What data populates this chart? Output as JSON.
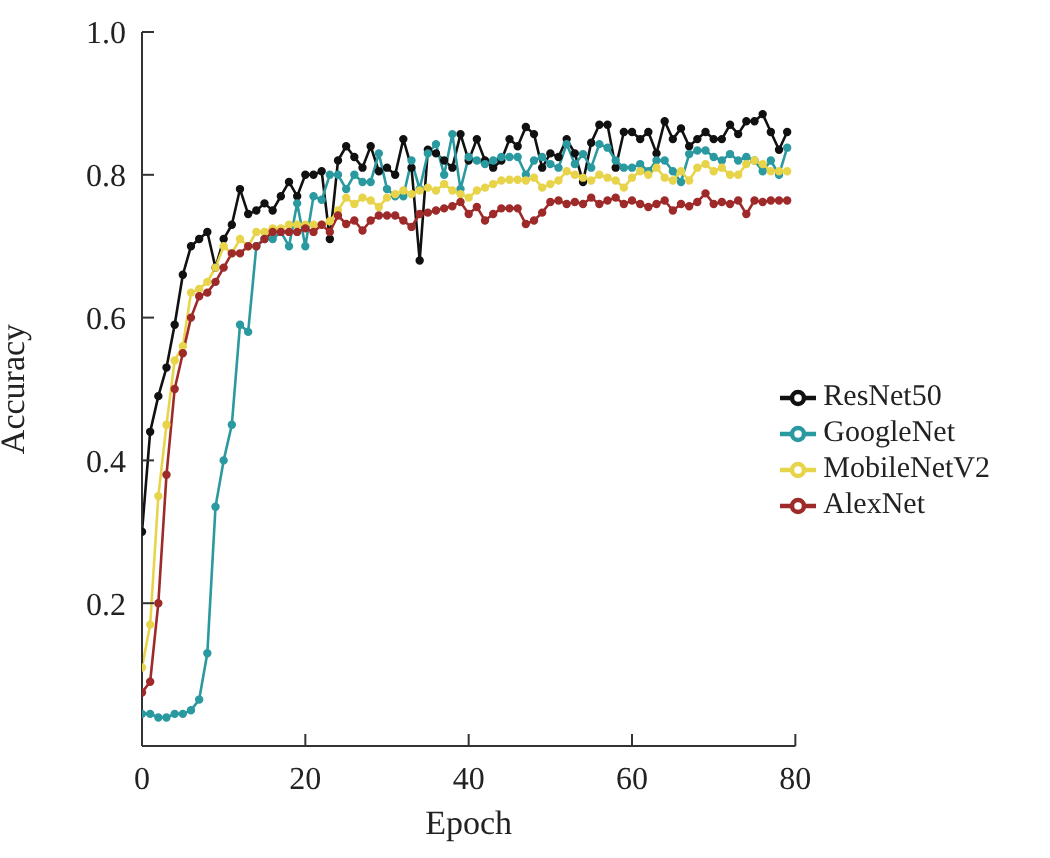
{
  "chart_data": {
    "type": "line",
    "xlabel": "Epoch",
    "ylabel": "Accuracy",
    "xlim": [
      0,
      80
    ],
    "xticks": [
      0,
      20,
      40,
      60,
      80
    ],
    "ylim": [
      0,
      1.0
    ],
    "yticks": [
      {
        "value": 0.2,
        "label": "0.2"
      },
      {
        "value": 0.4,
        "label": "0.4"
      },
      {
        "value": 0.6,
        "label": "0.6"
      },
      {
        "value": 0.8,
        "label": "0.8"
      },
      {
        "value": 1.0,
        "label": "1.0"
      }
    ],
    "legend": "right",
    "marker": "circle",
    "line_style": "solid",
    "x": [
      0,
      1,
      2,
      3,
      4,
      5,
      6,
      7,
      8,
      9,
      10,
      11,
      12,
      13,
      14,
      15,
      16,
      17,
      18,
      19,
      20,
      21,
      22,
      23,
      24,
      25,
      26,
      27,
      28,
      29,
      30,
      31,
      32,
      33,
      34,
      35,
      36,
      37,
      38,
      39,
      40,
      41,
      42,
      43,
      44,
      45,
      46,
      47,
      48,
      49,
      50,
      51,
      52,
      53,
      54,
      55,
      56,
      57,
      58,
      59,
      60,
      61,
      62,
      63,
      64,
      65,
      66,
      67,
      68,
      69,
      70,
      71,
      72,
      73,
      74,
      75,
      76,
      77,
      78,
      79
    ],
    "series": [
      {
        "name": "ResNet50",
        "color": "#111111",
        "values": [
          0.3,
          0.44,
          0.49,
          0.53,
          0.59,
          0.66,
          0.7,
          0.71,
          0.72,
          0.67,
          0.71,
          0.73,
          0.78,
          0.745,
          0.75,
          0.76,
          0.75,
          0.77,
          0.79,
          0.77,
          0.8,
          0.8,
          0.805,
          0.71,
          0.82,
          0.84,
          0.825,
          0.81,
          0.84,
          0.805,
          0.81,
          0.8,
          0.85,
          0.81,
          0.68,
          0.835,
          0.83,
          0.82,
          0.81,
          0.857,
          0.82,
          0.85,
          0.82,
          0.81,
          0.82,
          0.85,
          0.84,
          0.867,
          0.857,
          0.81,
          0.83,
          0.825,
          0.85,
          0.83,
          0.79,
          0.845,
          0.87,
          0.87,
          0.81,
          0.86,
          0.86,
          0.85,
          0.86,
          0.83,
          0.875,
          0.85,
          0.865,
          0.84,
          0.85,
          0.86,
          0.85,
          0.85,
          0.87,
          0.857,
          0.875,
          0.875,
          0.885,
          0.86,
          0.835,
          0.86
        ]
      },
      {
        "name": "GoogleNet",
        "color": "#2a9aa0",
        "values": [
          0.045,
          0.045,
          0.04,
          0.04,
          0.045,
          0.045,
          0.05,
          0.065,
          0.13,
          0.335,
          0.4,
          0.45,
          0.59,
          0.58,
          0.7,
          0.71,
          0.71,
          0.72,
          0.7,
          0.76,
          0.7,
          0.77,
          0.765,
          0.8,
          0.8,
          0.78,
          0.8,
          0.79,
          0.79,
          0.83,
          0.78,
          0.77,
          0.77,
          0.82,
          0.78,
          0.83,
          0.843,
          0.8,
          0.857,
          0.78,
          0.825,
          0.82,
          0.815,
          0.82,
          0.825,
          0.825,
          0.825,
          0.8,
          0.82,
          0.825,
          0.815,
          0.81,
          0.843,
          0.815,
          0.829,
          0.81,
          0.843,
          0.838,
          0.82,
          0.81,
          0.81,
          0.815,
          0.805,
          0.82,
          0.82,
          0.805,
          0.79,
          0.829,
          0.834,
          0.834,
          0.825,
          0.82,
          0.829,
          0.82,
          0.825,
          0.82,
          0.805,
          0.82,
          0.8,
          0.838
        ]
      },
      {
        "name": "MobileNetV2",
        "color": "#e8d44a",
        "values": [
          0.11,
          0.17,
          0.35,
          0.45,
          0.54,
          0.56,
          0.635,
          0.64,
          0.65,
          0.67,
          0.7,
          0.69,
          0.71,
          0.7,
          0.72,
          0.72,
          0.725,
          0.725,
          0.73,
          0.73,
          0.73,
          0.73,
          0.73,
          0.735,
          0.75,
          0.768,
          0.759,
          0.768,
          0.764,
          0.755,
          0.768,
          0.773,
          0.778,
          0.773,
          0.778,
          0.782,
          0.778,
          0.787,
          0.778,
          0.773,
          0.768,
          0.778,
          0.782,
          0.787,
          0.792,
          0.793,
          0.793,
          0.792,
          0.796,
          0.782,
          0.787,
          0.792,
          0.805,
          0.8,
          0.796,
          0.792,
          0.8,
          0.796,
          0.792,
          0.782,
          0.796,
          0.805,
          0.8,
          0.81,
          0.796,
          0.792,
          0.805,
          0.792,
          0.81,
          0.815,
          0.805,
          0.81,
          0.8,
          0.8,
          0.815,
          0.82,
          0.815,
          0.805,
          0.805,
          0.805
        ]
      },
      {
        "name": "AlexNet",
        "color": "#9e2a2a",
        "values": [
          0.075,
          0.09,
          0.2,
          0.38,
          0.5,
          0.55,
          0.6,
          0.63,
          0.635,
          0.65,
          0.67,
          0.69,
          0.69,
          0.7,
          0.7,
          0.71,
          0.72,
          0.72,
          0.72,
          0.72,
          0.725,
          0.72,
          0.73,
          0.72,
          0.743,
          0.731,
          0.736,
          0.722,
          0.736,
          0.743,
          0.743,
          0.743,
          0.736,
          0.727,
          0.745,
          0.747,
          0.75,
          0.753,
          0.756,
          0.762,
          0.745,
          0.755,
          0.736,
          0.745,
          0.753,
          0.753,
          0.753,
          0.731,
          0.736,
          0.747,
          0.762,
          0.764,
          0.759,
          0.762,
          0.759,
          0.768,
          0.759,
          0.764,
          0.768,
          0.759,
          0.764,
          0.759,
          0.755,
          0.759,
          0.764,
          0.75,
          0.759,
          0.756,
          0.762,
          0.774,
          0.759,
          0.762,
          0.759,
          0.764,
          0.745,
          0.764,
          0.762,
          0.764,
          0.764,
          0.764
        ]
      }
    ]
  }
}
